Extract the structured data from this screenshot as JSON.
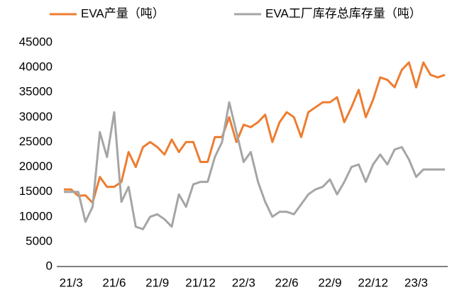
{
  "chart_data": {
    "type": "line",
    "categories": [
      null,
      "21/3",
      null,
      null,
      null,
      null,
      null,
      "21/6",
      null,
      null,
      null,
      null,
      null,
      "21/9",
      null,
      null,
      null,
      null,
      null,
      "21/12",
      null,
      null,
      null,
      null,
      null,
      "22/3",
      null,
      null,
      null,
      null,
      null,
      "22/6",
      null,
      null,
      null,
      null,
      null,
      "22/9",
      null,
      null,
      null,
      null,
      null,
      "22/12",
      null,
      null,
      null,
      null,
      null,
      "23/3",
      null,
      null,
      null,
      null
    ],
    "series": [
      {
        "name": "EVA产量（吨）",
        "color": "#ED7D31",
        "values": [
          15500,
          15500,
          14200,
          14300,
          12800,
          18000,
          16000,
          16000,
          17000,
          23000,
          20000,
          24000,
          25000,
          24000,
          22500,
          25500,
          23000,
          25000,
          25000,
          21000,
          21000,
          26000,
          26000,
          30000,
          25000,
          28500,
          28000,
          29000,
          30500,
          25000,
          29000,
          31000,
          30000,
          26000,
          31000,
          32000,
          33000,
          33000,
          34000,
          29000,
          32000,
          35500,
          30000,
          33500,
          38000,
          37500,
          36000,
          39500,
          41000,
          36000,
          41000,
          38500,
          38000,
          38500
        ]
      },
      {
        "name": "EVA工厂库存总库存量（吨）",
        "color": "#A5A5A5",
        "values": [
          15000,
          15000,
          15000,
          9000,
          12000,
          27000,
          22000,
          31000,
          13000,
          16000,
          8000,
          7500,
          10000,
          10500,
          9500,
          8000,
          14500,
          12000,
          16500,
          17000,
          17000,
          22000,
          25000,
          33000,
          27000,
          21000,
          23000,
          17000,
          13000,
          10000,
          11000,
          11000,
          10500,
          12500,
          14500,
          15500,
          16000,
          17500,
          14500,
          17000,
          20000,
          20500,
          17000,
          20500,
          22500,
          20500,
          23500,
          24000,
          21500,
          18000,
          19500,
          19500,
          19500,
          19500
        ]
      }
    ],
    "ylim": [
      0,
      45000
    ],
    "yticks": [
      0,
      5000,
      10000,
      15000,
      20000,
      25000,
      30000,
      35000,
      40000,
      45000
    ],
    "grid": false,
    "legend": "top"
  }
}
